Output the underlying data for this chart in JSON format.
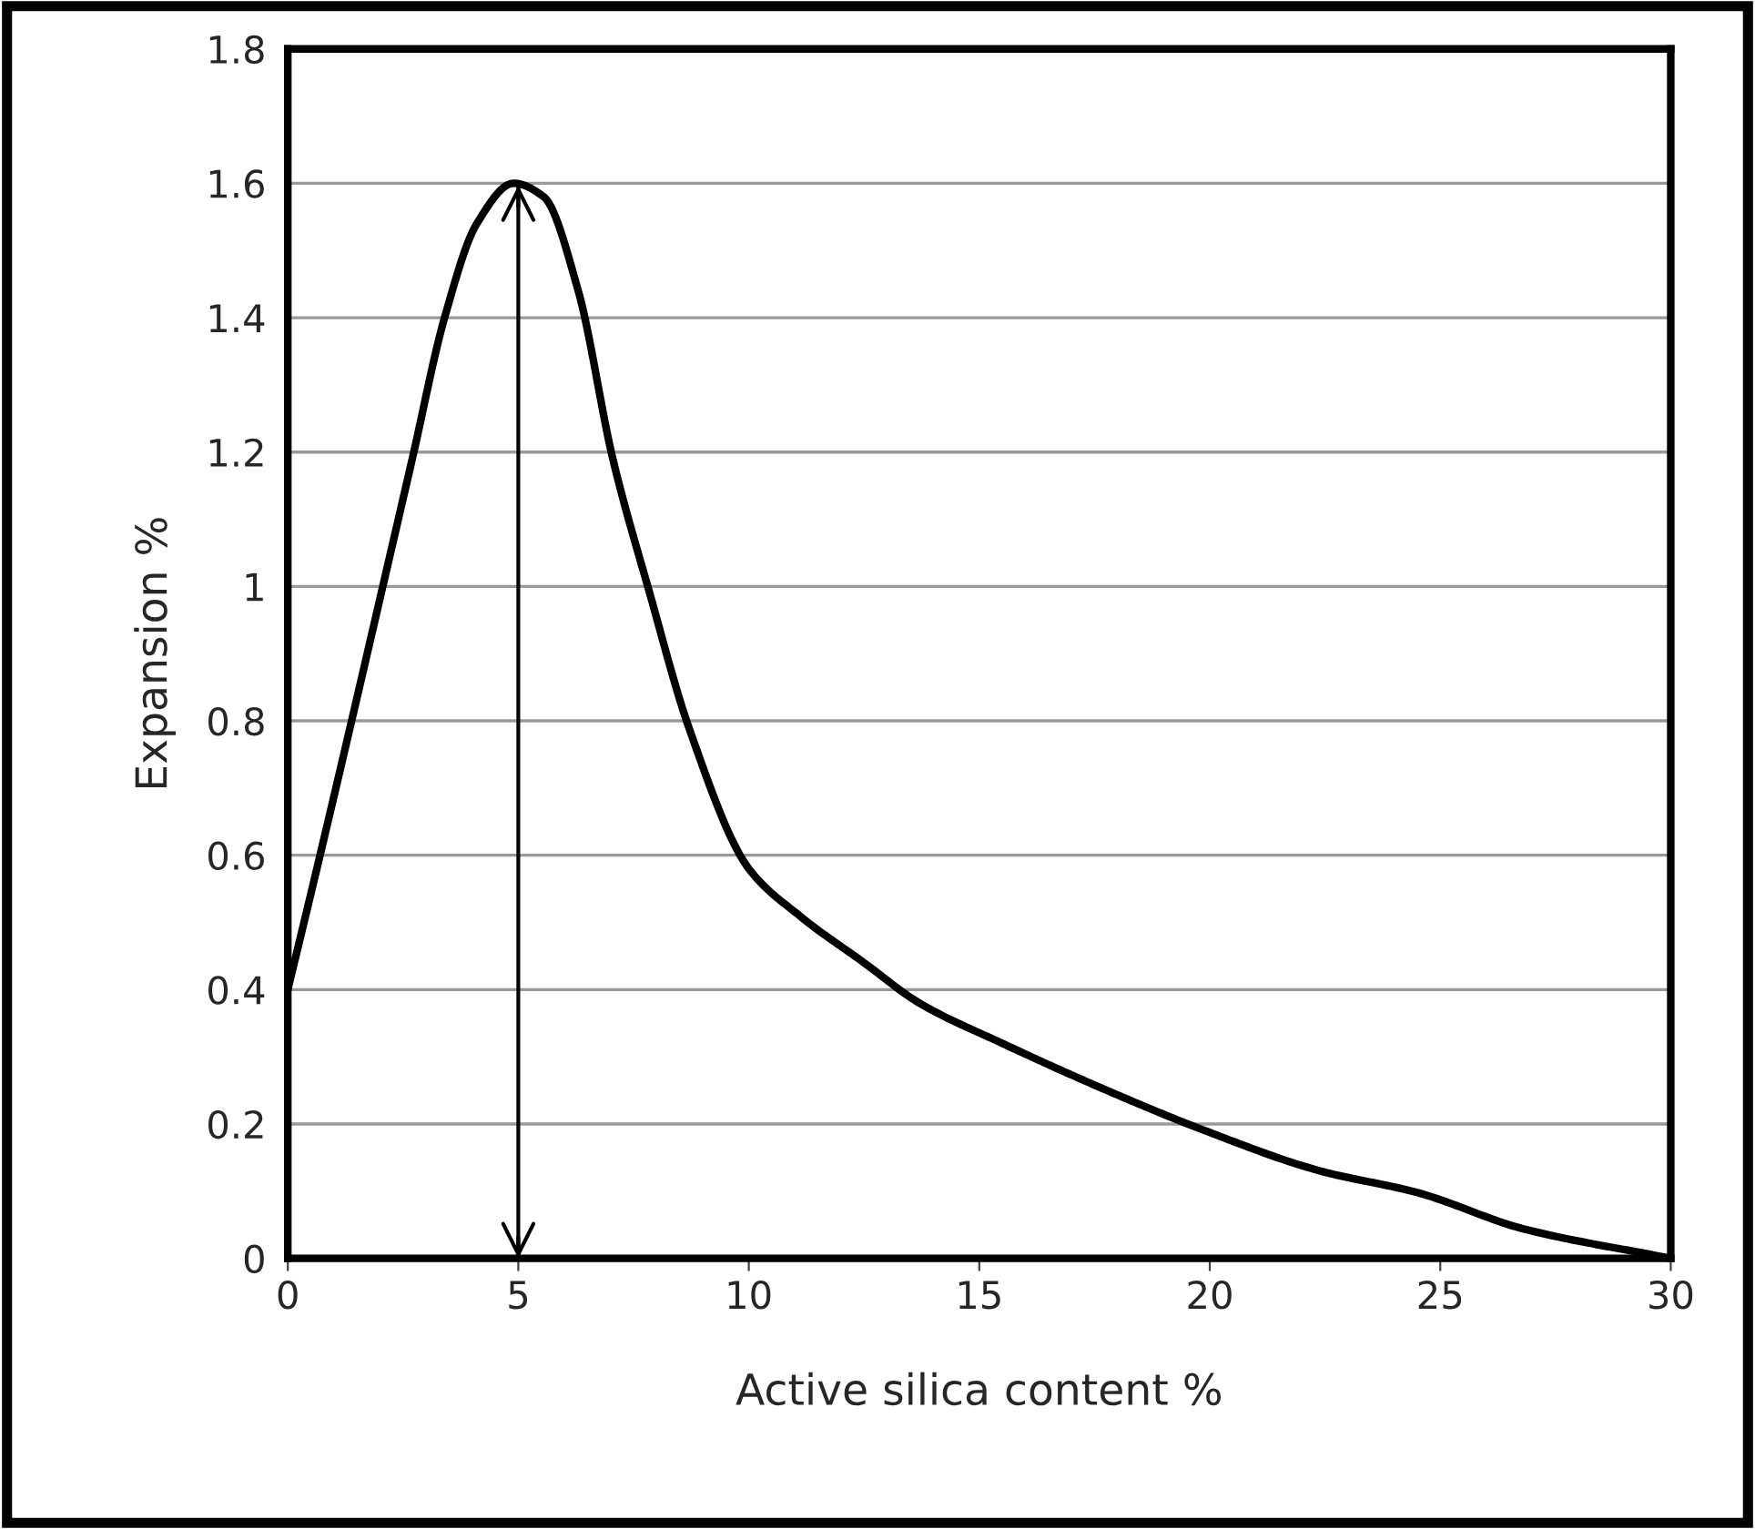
{
  "chart_data": {
    "type": "line",
    "xlabel": "Active silica content %",
    "ylabel": "Expansion %",
    "series": [
      {
        "color": "#000000",
        "x": [
          0,
          0.63,
          1.35,
          2.06,
          2.7,
          3.4,
          4.1,
          4.9,
          5.55,
          6.3,
          7.05,
          7.85,
          8.7,
          10.0,
          11.1,
          12.5,
          13.7,
          15.5,
          17.6,
          19.9,
          22.4,
          24.5,
          26.8,
          30
        ],
        "values": [
          0.4,
          0.58,
          0.79,
          1.0,
          1.19,
          1.4,
          1.54,
          1.6,
          1.58,
          1.44,
          1.19,
          0.99,
          0.79,
          0.58,
          0.51,
          0.44,
          0.38,
          0.32,
          0.255,
          0.19,
          0.13,
          0.098,
          0.044,
          0
        ]
      }
    ],
    "xlim": [
      0,
      30
    ],
    "xticks": [
      0,
      5,
      10,
      15,
      20,
      25,
      30
    ],
    "ylim": [
      0,
      1.8
    ],
    "yticks": [
      0,
      {
        "value": 0.2,
        "label": "0.2"
      },
      {
        "value": 0.4,
        "label": "0.4"
      },
      {
        "value": 0.6,
        "label": "0.6"
      },
      {
        "value": 0.8,
        "label": "0.8"
      },
      1,
      {
        "value": 1.2,
        "label": "1.2"
      },
      {
        "value": 1.4,
        "label": "1.4"
      },
      {
        "value": 1.6,
        "label": "1.6"
      },
      {
        "value": 1.8,
        "label": "1.8"
      }
    ],
    "grid": "y",
    "legend": false,
    "marker": "none",
    "line_style": "solid",
    "ref_lines": [
      {
        "axis": "x",
        "value": 5,
        "color": "#000000"
      }
    ]
  }
}
